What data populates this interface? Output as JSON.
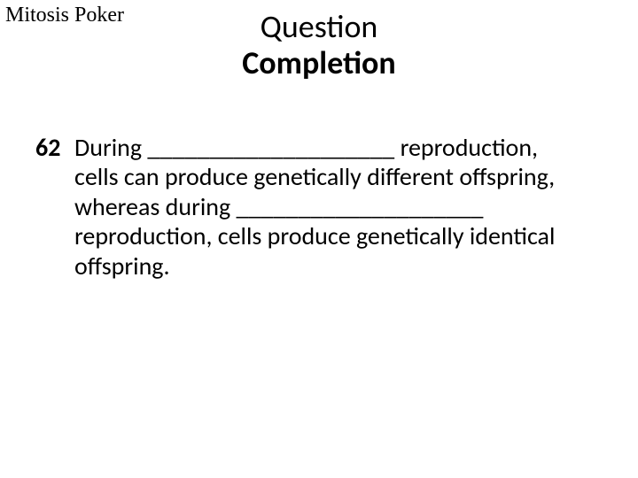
{
  "header": {
    "corner_label": "Mitosis Poker",
    "title_line1": "Question",
    "title_line2": "Completion"
  },
  "question": {
    "number": "62",
    "text": "During ____________________ reproduction, cells can produce genetically different offspring, whereas during ____________________ reproduction, cells produce genetically identical offspring."
  },
  "style": {
    "background_color": "#ffffff",
    "text_color": "#000000",
    "corner_font": "Times New Roman",
    "corner_fontsize_pt": 18,
    "title_fontsize_pt": 28,
    "body_fontsize_pt": 21,
    "title_weight_line2": "700",
    "qnum_weight": "700"
  }
}
